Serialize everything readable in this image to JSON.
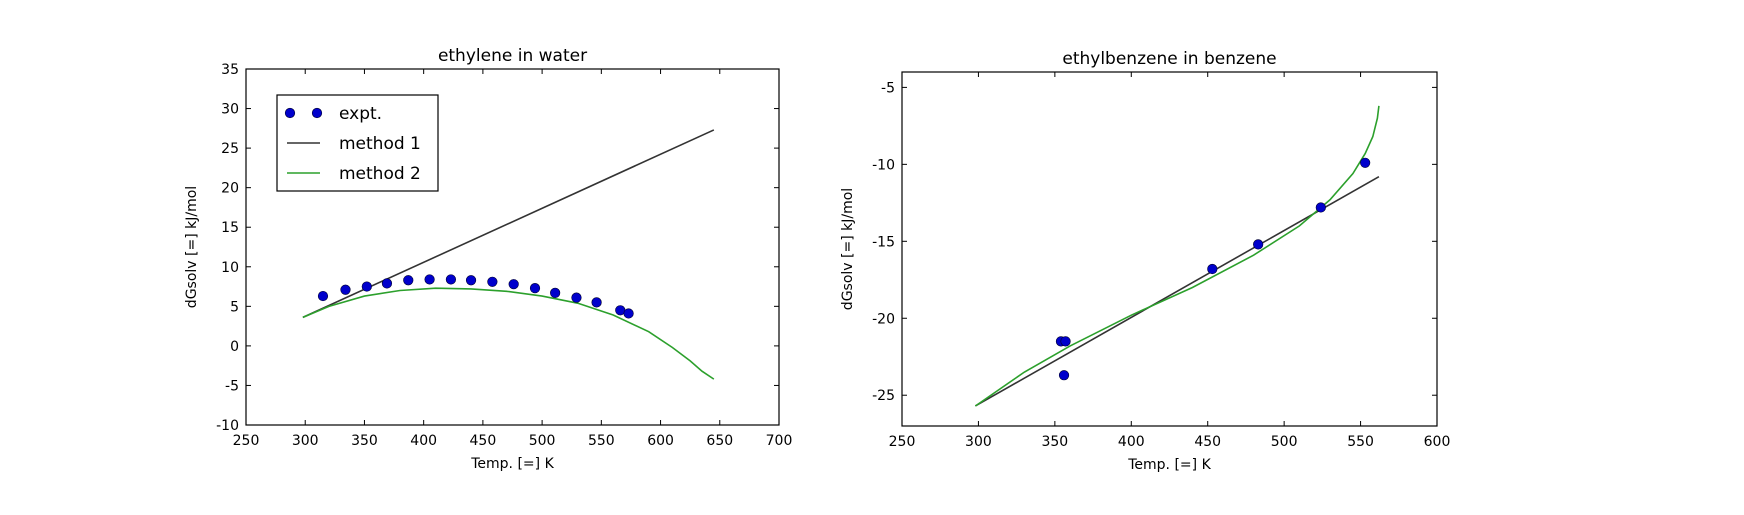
{
  "chart_data": [
    {
      "type": "line",
      "title": "ethylene in water",
      "xlabel": "Temp. [=] K",
      "ylabel": "dGsolv [=] kJ/mol",
      "xlim": [
        250,
        700
      ],
      "ylim": [
        -10,
        35
      ],
      "xticks": [
        250,
        300,
        350,
        400,
        450,
        500,
        550,
        600,
        650,
        700
      ],
      "yticks": [
        -10,
        -5,
        0,
        5,
        10,
        15,
        20,
        25,
        30,
        35
      ],
      "legend": "upper-left",
      "series": [
        {
          "name": "expt.",
          "style": "markers",
          "color": "#0000cc",
          "x": [
            315,
            334,
            352,
            369,
            387,
            405,
            423,
            440,
            458,
            476,
            494,
            511,
            529,
            546,
            566,
            573
          ],
          "y": [
            6.3,
            7.1,
            7.5,
            7.9,
            8.3,
            8.4,
            8.4,
            8.3,
            8.1,
            7.8,
            7.3,
            6.7,
            6.1,
            5.5,
            4.5,
            4.1
          ]
        },
        {
          "name": "method 1",
          "style": "line",
          "color": "#333333",
          "x": [
            298,
            645
          ],
          "y": [
            3.6,
            27.3
          ]
        },
        {
          "name": "method 2",
          "style": "line",
          "color": "#2ca02c",
          "x": [
            298,
            320,
            350,
            380,
            410,
            440,
            470,
            500,
            530,
            560,
            590,
            610,
            625,
            635,
            645
          ],
          "y": [
            3.6,
            5.0,
            6.3,
            7.0,
            7.3,
            7.2,
            6.9,
            6.3,
            5.4,
            3.9,
            1.8,
            -0.2,
            -1.9,
            -3.2,
            -4.2
          ]
        }
      ]
    },
    {
      "type": "line",
      "title": "ethylbenzene in benzene",
      "xlabel": "Temp. [=] K",
      "ylabel": "dGsolv [=] kJ/mol",
      "xlim": [
        250,
        600
      ],
      "ylim": [
        -27,
        -4
      ],
      "xticks": [
        250,
        300,
        350,
        400,
        450,
        500,
        550,
        600
      ],
      "yticks": [
        -25,
        -20,
        -15,
        -10,
        -5
      ],
      "series": [
        {
          "name": "expt.",
          "style": "markers",
          "color": "#0000cc",
          "x": [
            354,
            357,
            356,
            453,
            483,
            524,
            553
          ],
          "y": [
            -21.5,
            -21.5,
            -23.7,
            -16.8,
            -15.2,
            -12.8,
            -9.9
          ]
        },
        {
          "name": "method 1",
          "style": "line",
          "color": "#333333",
          "x": [
            298,
            562
          ],
          "y": [
            -25.7,
            -10.8
          ]
        },
        {
          "name": "method 2",
          "style": "line",
          "color": "#2ca02c",
          "x": [
            298,
            330,
            360,
            400,
            440,
            480,
            510,
            530,
            545,
            553,
            558,
            561,
            562
          ],
          "y": [
            -25.7,
            -23.5,
            -21.8,
            -19.8,
            -18.0,
            -15.9,
            -14.0,
            -12.3,
            -10.6,
            -9.3,
            -8.2,
            -7.0,
            -6.2
          ]
        }
      ]
    }
  ]
}
